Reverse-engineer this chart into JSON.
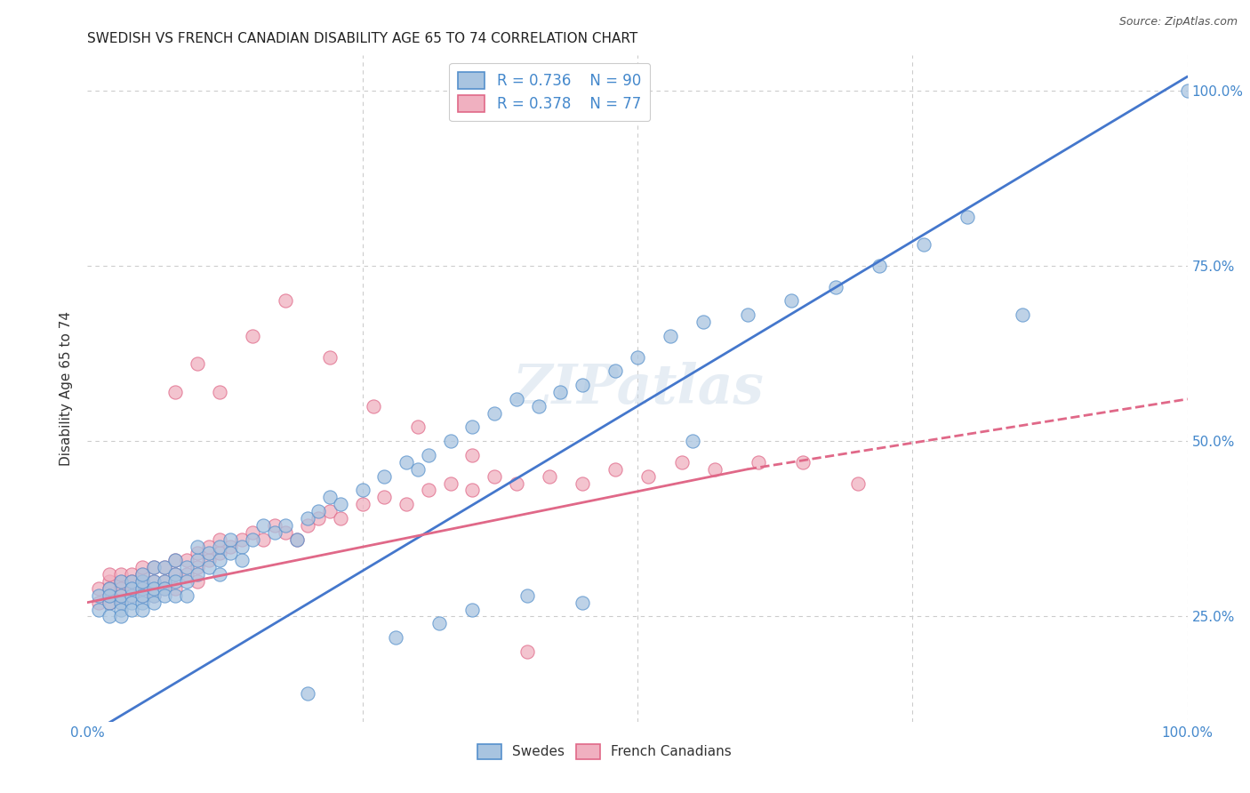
{
  "title": "SWEDISH VS FRENCH CANADIAN DISABILITY AGE 65 TO 74 CORRELATION CHART",
  "source": "Source: ZipAtlas.com",
  "ylabel": "Disability Age 65 to 74",
  "xlim": [
    0.0,
    1.0
  ],
  "ylim": [
    0.1,
    1.05
  ],
  "xtick_positions": [
    0.0,
    0.25,
    0.5,
    0.75,
    1.0
  ],
  "xticklabels": [
    "0.0%",
    "",
    "",
    "",
    "100.0%"
  ],
  "ytick_positions": [
    0.25,
    0.5,
    0.75,
    1.0
  ],
  "yticklabels": [
    "25.0%",
    "50.0%",
    "75.0%",
    "100.0%"
  ],
  "legend_R1": "R = 0.736",
  "legend_N1": "N = 90",
  "legend_R2": "R = 0.378",
  "legend_N2": "N = 77",
  "swedes_color": "#a8c4e0",
  "swedes_edge": "#5590cc",
  "french_color": "#f0b0c0",
  "french_edge": "#e06888",
  "swedes_line_color": "#4477cc",
  "french_line_color": "#e06888",
  "tick_color": "#4488cc",
  "legend_text_color": "#4488cc",
  "grid_color": "#cccccc",
  "background_color": "#ffffff",
  "watermark": "ZIPatlas",
  "title_fontsize": 11,
  "swedes_reg": [
    0.0,
    1.0,
    0.08,
    1.02
  ],
  "french_reg_solid": [
    0.0,
    0.6,
    0.27,
    0.46
  ],
  "french_reg_dash": [
    0.6,
    1.0,
    0.46,
    0.56
  ],
  "swedes_x": [
    0.01,
    0.01,
    0.02,
    0.02,
    0.02,
    0.02,
    0.03,
    0.03,
    0.03,
    0.03,
    0.03,
    0.04,
    0.04,
    0.04,
    0.04,
    0.04,
    0.05,
    0.05,
    0.05,
    0.05,
    0.05,
    0.05,
    0.06,
    0.06,
    0.06,
    0.06,
    0.06,
    0.07,
    0.07,
    0.07,
    0.07,
    0.08,
    0.08,
    0.08,
    0.08,
    0.09,
    0.09,
    0.09,
    0.1,
    0.1,
    0.1,
    0.11,
    0.11,
    0.12,
    0.12,
    0.12,
    0.13,
    0.13,
    0.14,
    0.14,
    0.15,
    0.16,
    0.17,
    0.18,
    0.19,
    0.2,
    0.21,
    0.22,
    0.23,
    0.25,
    0.27,
    0.29,
    0.3,
    0.31,
    0.33,
    0.35,
    0.37,
    0.39,
    0.41,
    0.43,
    0.45,
    0.48,
    0.5,
    0.53,
    0.56,
    0.6,
    0.64,
    0.68,
    0.72,
    0.76,
    0.8,
    0.35,
    0.4,
    0.45,
    0.28,
    0.32,
    0.2,
    0.55,
    0.85,
    1.0
  ],
  "swedes_y": [
    0.28,
    0.26,
    0.27,
    0.29,
    0.25,
    0.28,
    0.27,
    0.26,
    0.28,
    0.3,
    0.25,
    0.28,
    0.27,
    0.3,
    0.26,
    0.29,
    0.27,
    0.29,
    0.28,
    0.3,
    0.26,
    0.31,
    0.28,
    0.3,
    0.29,
    0.32,
    0.27,
    0.3,
    0.29,
    0.32,
    0.28,
    0.31,
    0.3,
    0.28,
    0.33,
    0.32,
    0.3,
    0.28,
    0.33,
    0.31,
    0.35,
    0.32,
    0.34,
    0.33,
    0.35,
    0.31,
    0.36,
    0.34,
    0.35,
    0.33,
    0.36,
    0.38,
    0.37,
    0.38,
    0.36,
    0.39,
    0.4,
    0.42,
    0.41,
    0.43,
    0.45,
    0.47,
    0.46,
    0.48,
    0.5,
    0.52,
    0.54,
    0.56,
    0.55,
    0.57,
    0.58,
    0.6,
    0.62,
    0.65,
    0.67,
    0.68,
    0.7,
    0.72,
    0.75,
    0.78,
    0.82,
    0.26,
    0.28,
    0.27,
    0.22,
    0.24,
    0.14,
    0.5,
    0.68,
    1.0
  ],
  "french_x": [
    0.01,
    0.01,
    0.02,
    0.02,
    0.02,
    0.02,
    0.02,
    0.03,
    0.03,
    0.03,
    0.03,
    0.03,
    0.04,
    0.04,
    0.04,
    0.04,
    0.05,
    0.05,
    0.05,
    0.05,
    0.05,
    0.06,
    0.06,
    0.06,
    0.07,
    0.07,
    0.07,
    0.08,
    0.08,
    0.08,
    0.09,
    0.09,
    0.1,
    0.1,
    0.1,
    0.11,
    0.11,
    0.12,
    0.12,
    0.13,
    0.14,
    0.15,
    0.16,
    0.17,
    0.18,
    0.19,
    0.2,
    0.21,
    0.22,
    0.23,
    0.25,
    0.27,
    0.29,
    0.31,
    0.33,
    0.35,
    0.37,
    0.39,
    0.42,
    0.45,
    0.48,
    0.51,
    0.54,
    0.57,
    0.61,
    0.65,
    0.7,
    0.08,
    0.1,
    0.12,
    0.15,
    0.18,
    0.22,
    0.26,
    0.3,
    0.35,
    0.4
  ],
  "french_y": [
    0.27,
    0.29,
    0.28,
    0.3,
    0.27,
    0.29,
    0.31,
    0.28,
    0.3,
    0.29,
    0.31,
    0.27,
    0.29,
    0.31,
    0.28,
    0.3,
    0.29,
    0.31,
    0.28,
    0.3,
    0.32,
    0.3,
    0.28,
    0.32,
    0.3,
    0.32,
    0.29,
    0.31,
    0.29,
    0.33,
    0.31,
    0.33,
    0.32,
    0.3,
    0.34,
    0.33,
    0.35,
    0.34,
    0.36,
    0.35,
    0.36,
    0.37,
    0.36,
    0.38,
    0.37,
    0.36,
    0.38,
    0.39,
    0.4,
    0.39,
    0.41,
    0.42,
    0.41,
    0.43,
    0.44,
    0.43,
    0.45,
    0.44,
    0.45,
    0.44,
    0.46,
    0.45,
    0.47,
    0.46,
    0.47,
    0.47,
    0.44,
    0.57,
    0.61,
    0.57,
    0.65,
    0.7,
    0.62,
    0.55,
    0.52,
    0.48,
    0.2
  ]
}
